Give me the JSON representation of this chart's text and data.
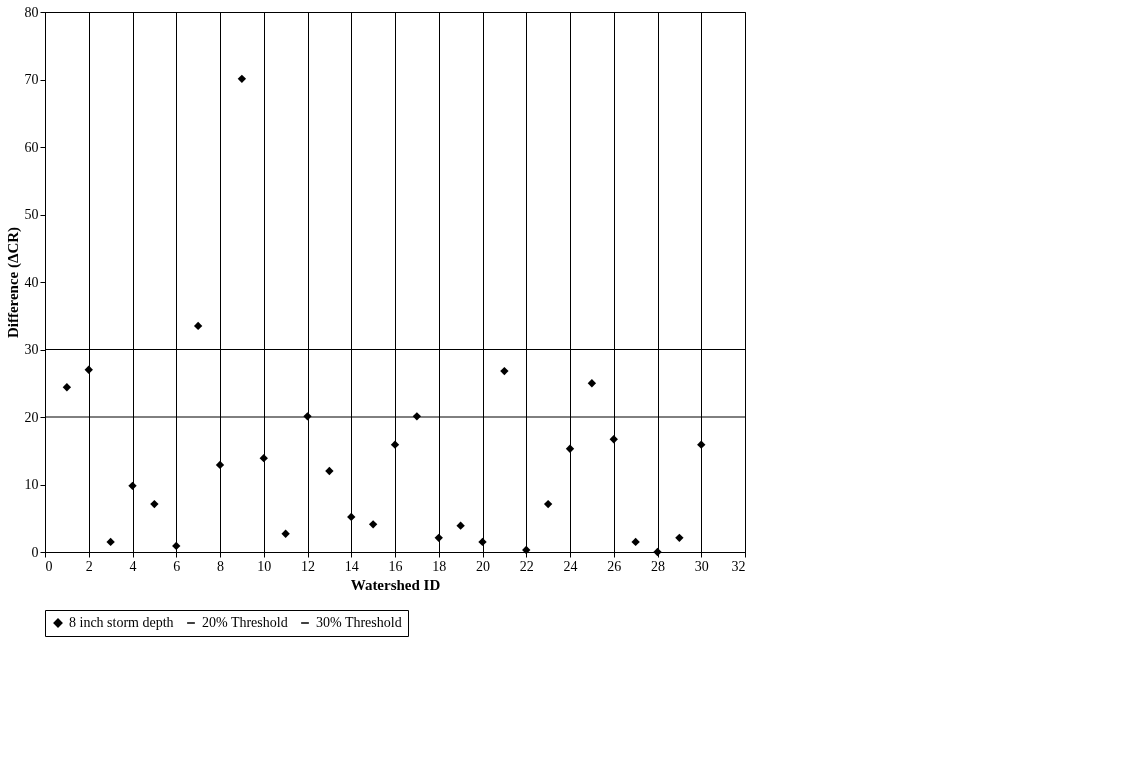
{
  "chart_data": {
    "type": "scatter",
    "xlabel": "Watershed ID",
    "ylabel": "Difference (ΔCR)",
    "xlim": [
      0,
      32
    ],
    "xticks": [
      0,
      2,
      4,
      6,
      8,
      10,
      12,
      14,
      16,
      18,
      20,
      22,
      24,
      26,
      28,
      30,
      32
    ],
    "ylim": [
      0,
      80
    ],
    "yticks": [
      0,
      10,
      20,
      30,
      40,
      50,
      60,
      70,
      80
    ],
    "grid": "x",
    "legend": "bottom",
    "series": [
      {
        "name": "8 inch storm depth",
        "marker": "diamond",
        "color": "#000000",
        "x": [
          1,
          2,
          3,
          4,
          5,
          6,
          7,
          8,
          9,
          10,
          11,
          12,
          13,
          14,
          15,
          16,
          17,
          18,
          19,
          20,
          21,
          22,
          23,
          24,
          25,
          26,
          27,
          28,
          29,
          30
        ],
        "values": [
          24.4,
          27.0,
          1.5,
          9.8,
          7.1,
          0.9,
          33.5,
          12.9,
          70.1,
          13.9,
          2.7,
          20.1,
          12.0,
          5.2,
          4.1,
          15.9,
          20.1,
          2.1,
          3.9,
          1.5,
          26.8,
          0.3,
          7.1,
          15.3,
          25.0,
          16.7,
          1.5,
          0.0,
          2.1,
          15.9
        ]
      },
      {
        "name": "20% Threshold",
        "type": "line",
        "line_style": "solid",
        "color": "#000000",
        "x": [
          0,
          32
        ],
        "values": [
          20,
          20
        ]
      },
      {
        "name": "30% Threshold",
        "type": "line",
        "line_style": "solid",
        "color": "#000000",
        "x": [
          0,
          32
        ],
        "values": [
          30,
          30
        ]
      }
    ]
  }
}
